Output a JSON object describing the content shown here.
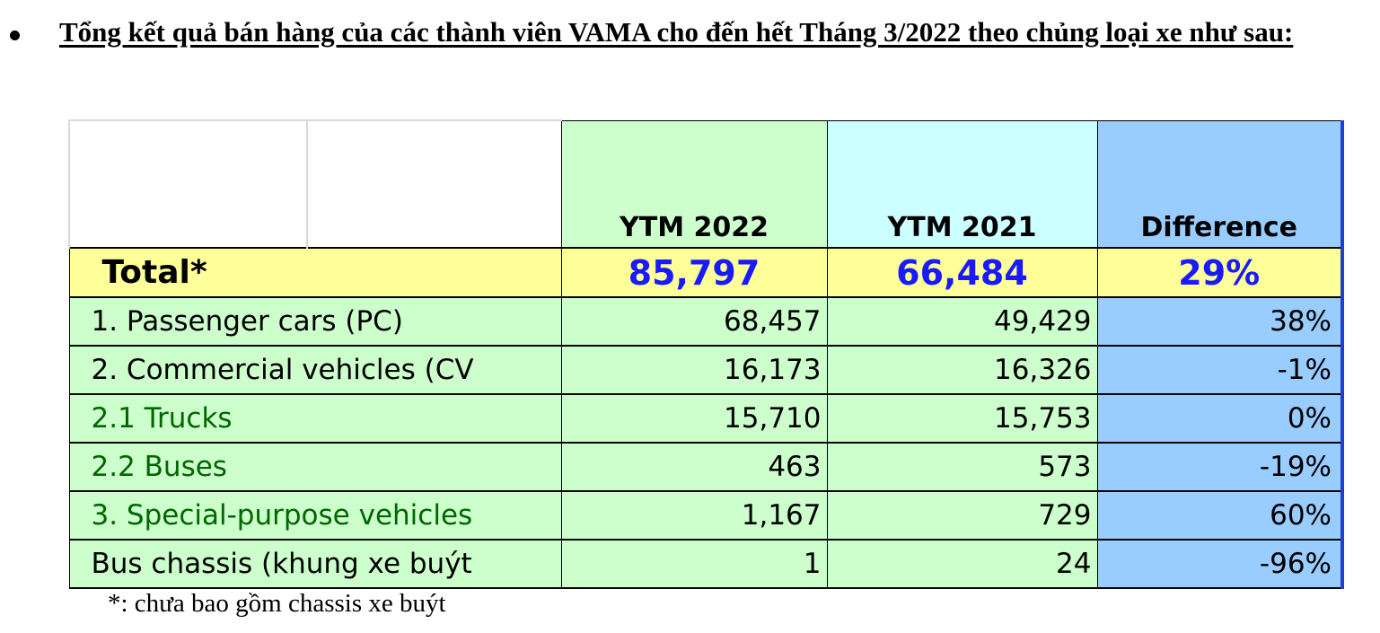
{
  "heading": {
    "text": "Tổng kết quả bán hàng của các thành viên VAMA cho đến hết Tháng 3/2022 theo chủng loại xe như sau:"
  },
  "table": {
    "columns": {
      "ytm2022": "YTM 2022",
      "ytm2021": "YTM 2021",
      "difference": "Difference"
    },
    "total": {
      "label": "Total*",
      "ytm2022": "85,797",
      "ytm2021": "66,484",
      "difference": "29%"
    },
    "rows": [
      {
        "label": "1. Passenger cars (PC)",
        "ytm2022": "68,457",
        "ytm2021": "49,429",
        "difference": "38%"
      },
      {
        "label": "2. Commercial vehicles (CV",
        "ytm2022": "16,173",
        "ytm2021": "16,326",
        "difference": "-1%"
      },
      {
        "label": "2.1 Trucks",
        "ytm2022": "15,710",
        "ytm2021": "15,753",
        "difference": "0%"
      },
      {
        "label": "2.2 Buses",
        "ytm2022": "463",
        "ytm2021": "573",
        "difference": "-19%"
      },
      {
        "label": "3. Special-purpose vehicles",
        "ytm2022": "1,167",
        "ytm2021": "729",
        "difference": "60%"
      },
      {
        "label": "Bus chassis (khung xe buýt",
        "ytm2022": "1",
        "ytm2021": "24",
        "difference": "-96%"
      }
    ],
    "colors": {
      "ytm2022_bg": "#ccffcc",
      "ytm2021_bg": "#ccffff",
      "difference_bg": "#99ccff",
      "total_bg": "#ffff99",
      "total_value_color": "#1a1aff",
      "row_label_green": "#006600"
    }
  },
  "footnote": "*: chưa bao gồm chassis xe buýt"
}
